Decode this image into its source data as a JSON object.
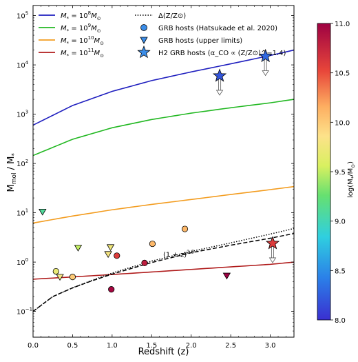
{
  "chart_data": {
    "type": "scatter",
    "xlabel": "Redshift (z)",
    "ylabel": "M_mol / M_*",
    "ylabel_parts": [
      "M",
      "mol",
      " / M",
      "*"
    ],
    "xlim": [
      0.0,
      3.3
    ],
    "ylim": [
      0.03,
      160000
    ],
    "yscale": "log",
    "xticks": [
      0.0,
      0.5,
      1.0,
      1.5,
      2.0,
      2.5,
      3.0
    ],
    "xtick_labels": [
      "0.0",
      "0.5",
      "1.0",
      "1.5",
      "2.0",
      "2.5",
      "3.0"
    ],
    "yticks": [
      0.1,
      1,
      10,
      100,
      1000,
      10000,
      100000
    ],
    "ytick_labels": [
      [
        "10",
        "−1"
      ],
      [
        "10",
        "0"
      ],
      [
        "10",
        "1"
      ],
      [
        "10",
        "2"
      ],
      [
        "10",
        "3"
      ],
      [
        "10",
        "4"
      ],
      [
        "10",
        "5"
      ]
    ],
    "colorbar": {
      "label": "log(M_*/M_⊙)",
      "label_parts": [
        "log(M",
        "*",
        "/M",
        "⊙",
        ")"
      ],
      "range": [
        8.0,
        11.0
      ],
      "ticks": [
        8.0,
        8.5,
        9.0,
        9.5,
        10.0,
        10.5,
        11.0
      ],
      "tick_labels": [
        "8.0",
        "8.5",
        "9.0",
        "9.5",
        "10.0",
        "10.5",
        "11.0"
      ],
      "colormap": "spectral_r"
    },
    "legend": {
      "placement": "top",
      "line_entries": [
        {
          "parts": [
            "M",
            "*",
            " = 10",
            "8",
            "M",
            "⊙"
          ],
          "color": "#1f1fbf"
        },
        {
          "parts": [
            "M",
            "*",
            " = 10",
            "9",
            "M",
            "⊙"
          ],
          "color": "#22b822"
        },
        {
          "parts": [
            "M",
            "*",
            " = 10",
            "10",
            "M",
            "⊙"
          ],
          "color": "#f39c1f"
        },
        {
          "parts": [
            "M",
            "*",
            " = 10",
            "11",
            "M",
            "⊙"
          ],
          "color": "#b01c1c"
        }
      ],
      "marker_entries": [
        {
          "marker": "dotted-line",
          "text": "Δ(Z/Z⊙)"
        },
        {
          "marker": "circle",
          "text": "GRB hosts (Hatsukade et al. 2020)"
        },
        {
          "marker": "triangle",
          "text": "GRB hosts (upper limits)"
        },
        {
          "marker": "star",
          "text": "H2 GRB hosts (α_CO ∝ (Z/Z⊙)^−1.4)"
        }
      ]
    },
    "annotation": {
      "text": "(1 + z)^2.5",
      "parts": [
        "(1 + z)",
        "2.5"
      ],
      "x": 1.75,
      "y": 1.2
    },
    "series": [
      {
        "name": "M* = 10^8 M⊙",
        "style": "line",
        "color": "#1f1fbf",
        "x": [
          0.0,
          0.5,
          1.0,
          1.5,
          2.0,
          2.5,
          3.0,
          3.3
        ],
        "y": [
          600,
          1500,
          2900,
          4800,
          7200,
          10500,
          15500,
          20000
        ]
      },
      {
        "name": "M* = 10^9 M⊙",
        "style": "line",
        "color": "#22b822",
        "x": [
          0.0,
          0.5,
          1.0,
          1.5,
          2.0,
          2.5,
          3.0,
          3.3
        ],
        "y": [
          145,
          310,
          530,
          780,
          1050,
          1350,
          1700,
          2000
        ]
      },
      {
        "name": "M* = 10^10 M⊙",
        "style": "line",
        "color": "#f39c1f",
        "x": [
          0.0,
          0.5,
          1.0,
          1.5,
          2.0,
          2.5,
          3.0,
          3.3
        ],
        "y": [
          6.2,
          8.6,
          11.5,
          14.8,
          18.6,
          23.5,
          29.5,
          34
        ]
      },
      {
        "name": "M* = 10^11 M⊙",
        "style": "line",
        "color": "#b01c1c",
        "x": [
          0.0,
          0.5,
          1.0,
          1.5,
          2.0,
          2.5,
          3.0,
          3.3
        ],
        "y": [
          0.45,
          0.5,
          0.56,
          0.63,
          0.71,
          0.8,
          0.9,
          1.0
        ]
      },
      {
        "name": "Δ(Z/Z⊙)",
        "style": "dotted",
        "color": "#000000",
        "x": [
          0.0,
          0.25,
          0.5,
          0.75,
          1.0,
          1.5,
          2.0,
          2.5,
          3.0,
          3.3
        ],
        "y": [
          0.1,
          0.2,
          0.3,
          0.43,
          0.6,
          1.05,
          1.65,
          2.45,
          3.7,
          4.8
        ]
      },
      {
        "name": "(1 + z)^2.5",
        "style": "dashed",
        "color": "#000000",
        "x": [
          0.0,
          0.25,
          0.5,
          0.75,
          1.0,
          1.5,
          2.0,
          2.5,
          3.0,
          3.3
        ],
        "y": [
          0.1,
          0.2,
          0.3,
          0.42,
          0.57,
          0.98,
          1.55,
          2.2,
          3.05,
          3.8
        ]
      },
      {
        "name": "GRB hosts (Hatsukade et al. 2020)",
        "style": "circle",
        "points": [
          {
            "x": 0.29,
            "y": 0.65,
            "logM": 9.7
          },
          {
            "x": 0.5,
            "y": 0.5,
            "logM": 10.0
          },
          {
            "x": 1.06,
            "y": 1.35,
            "logM": 10.6
          },
          {
            "x": 0.99,
            "y": 0.28,
            "logM": 10.95
          },
          {
            "x": 1.41,
            "y": 0.96,
            "logM": 10.8
          },
          {
            "x": 1.51,
            "y": 2.35,
            "logM": 10.1
          },
          {
            "x": 1.92,
            "y": 4.7,
            "logM": 10.1
          }
        ]
      },
      {
        "name": "GRB hosts (upper limits)",
        "style": "triangle",
        "points": [
          {
            "x": 0.12,
            "y": 10.5,
            "logM": 9.1
          },
          {
            "x": 0.34,
            "y": 0.5,
            "logM": 9.8
          },
          {
            "x": 0.57,
            "y": 1.95,
            "logM": 9.5
          },
          {
            "x": 0.95,
            "y": 1.45,
            "logM": 9.8
          },
          {
            "x": 0.98,
            "y": 2.0,
            "logM": 9.75
          },
          {
            "x": 2.45,
            "y": 0.53,
            "logM": 11.0
          }
        ]
      },
      {
        "name": "H2 GRB hosts (α_CO ∝ (Z/Z⊙)^−1.4)",
        "style": "star",
        "points": [
          {
            "x": 2.36,
            "y": 6000,
            "logM": 8.2,
            "upper_limit": true
          },
          {
            "x": 2.94,
            "y": 15000,
            "logM": 8.3,
            "upper_limit": true
          },
          {
            "x": 3.03,
            "y": 2.4,
            "logM": 10.6,
            "upper_limit": true
          }
        ]
      }
    ]
  }
}
